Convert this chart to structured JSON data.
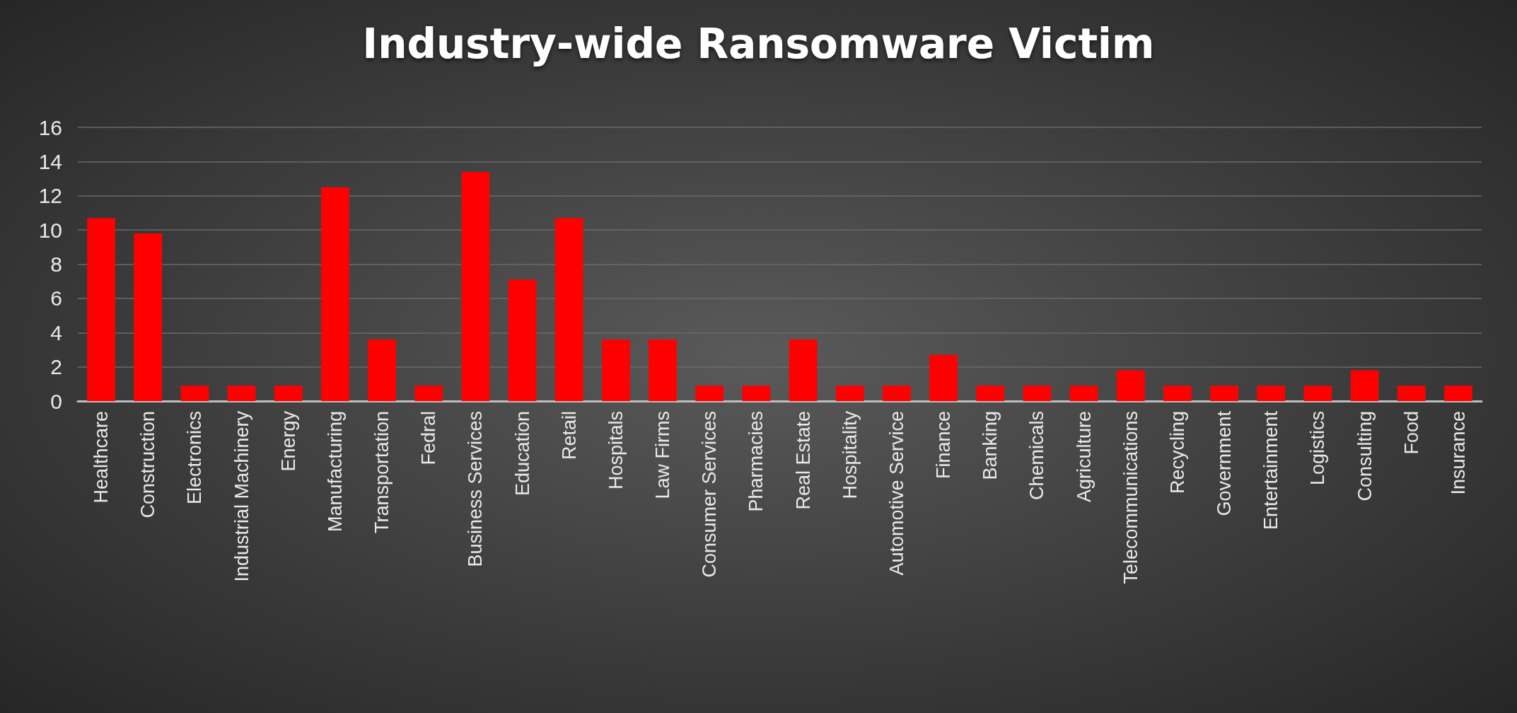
{
  "chart_data": {
    "type": "bar",
    "title": "Industry-wide Ransomware Victim",
    "categories": [
      "Healthcare",
      "Construction",
      "Electronics",
      "Industrial Machinery",
      "Energy",
      "Manufacturing",
      "Transportation",
      "Fedral",
      "Business Services",
      "Education",
      "Retail",
      "Hospitals",
      "Law Firms",
      "Consumer Services",
      "Pharmacies",
      "Real Estate",
      "Hospitality",
      "Automotive Service",
      "Finance",
      "Banking",
      "Chemicals",
      "Agriculture",
      "Telecommunications",
      "Recycling",
      "Government",
      "Entertainment",
      "Logistics",
      "Consulting",
      "Food",
      "Insurance"
    ],
    "values": [
      10.7,
      9.8,
      0.9,
      0.9,
      0.9,
      12.5,
      3.6,
      0.9,
      13.4,
      7.1,
      10.7,
      3.6,
      3.6,
      0.9,
      0.9,
      3.6,
      0.9,
      0.9,
      2.7,
      0.9,
      0.9,
      0.9,
      1.8,
      0.9,
      0.9,
      0.9,
      0.9,
      1.8,
      0.9,
      0.9
    ],
    "color": "#ff0000",
    "ylim": [
      0,
      16
    ],
    "yticks": [
      0,
      2,
      4,
      6,
      8,
      10,
      12,
      14,
      16
    ],
    "grid": "y"
  }
}
